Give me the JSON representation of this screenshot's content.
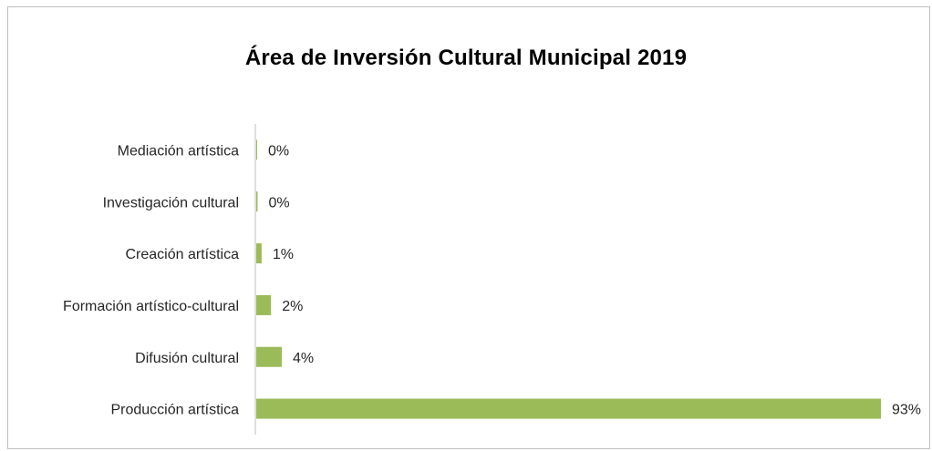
{
  "chart_data": {
    "type": "bar",
    "orientation": "horizontal",
    "title": "Área de Inversión Cultural Municipal 2019",
    "xlabel": "",
    "ylabel": "",
    "categories": [
      "Mediación artística",
      "Investigación cultural",
      "Creación artística",
      "Formación artístico-cultural",
      "Difusión cultural",
      "Producción artística"
    ],
    "values": [
      0.1,
      0.2,
      0.8,
      2.2,
      3.8,
      93
    ],
    "data_labels": [
      "0%",
      "0%",
      "1%",
      "2%",
      "4%",
      "93%"
    ],
    "unit": "%",
    "xlim": [
      0,
      93
    ],
    "grid": false,
    "legend": "none",
    "colors": {
      "bar": "#9bbb59",
      "axis": "#bfbfbf",
      "frame": "#bfbfbf",
      "text": "#262626"
    }
  }
}
